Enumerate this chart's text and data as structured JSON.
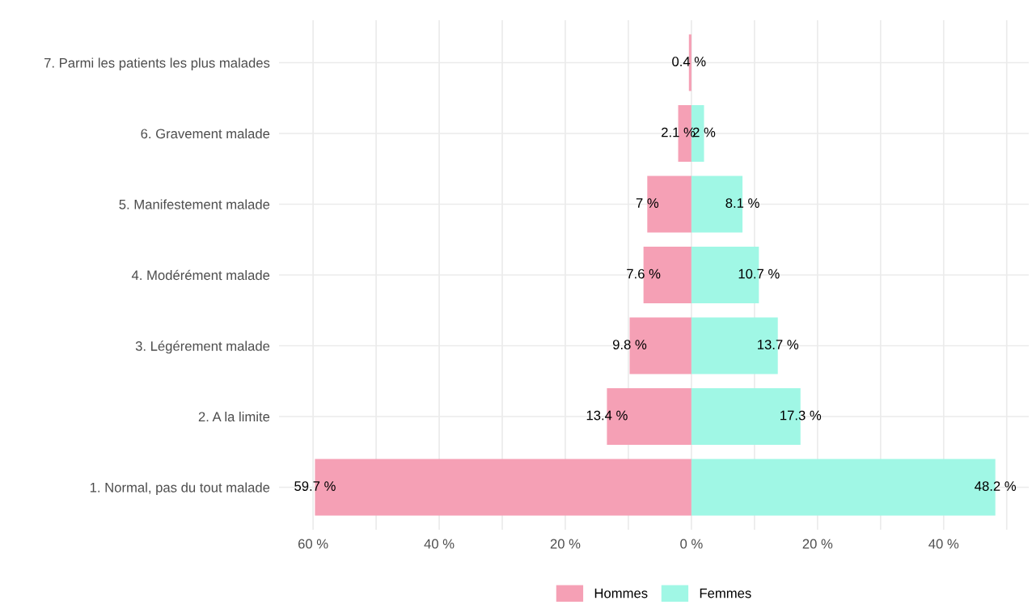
{
  "chart_data": {
    "type": "bar",
    "orientation": "horizontal",
    "categories": [
      "7. Parmi les patients les plus malades",
      "6. Gravement malade",
      "5. Manifestement malade",
      "4. Modérément malade",
      "3. Légérement malade",
      "2. A la limite",
      "1. Normal, pas du tout malade"
    ],
    "series": [
      {
        "name": "Hommes",
        "color": "#f5a0b5",
        "values": [
          0.4,
          2.1,
          7,
          7.6,
          9.8,
          13.4,
          59.7
        ],
        "base": [
          -0.4,
          -2.1,
          -7,
          -7.6,
          -9.8,
          -13.4,
          -59.7
        ],
        "value_labels": [
          "0.4 %",
          "2.1 %",
          "7 %",
          "7.6 %",
          "9.8 %",
          "13.4 %",
          "59.7 %"
        ]
      },
      {
        "name": "Femmes",
        "color": "#a0f7e5",
        "values": [
          null,
          2,
          8.1,
          10.7,
          13.7,
          17.3,
          48.2
        ],
        "value_labels": [
          null,
          "2 %",
          "8.1 %",
          "10.7 %",
          "13.7 %",
          "17.3 %",
          "48.2 %"
        ]
      }
    ],
    "xlim": [
      -65.4,
      53.5
    ],
    "xticks": [
      {
        "value": -60,
        "label": "60 %"
      },
      {
        "value": -50,
        "label": null
      },
      {
        "value": -40,
        "label": "40 %"
      },
      {
        "value": -30,
        "label": null
      },
      {
        "value": -20,
        "label": "20 %"
      },
      {
        "value": -10,
        "label": null
      },
      {
        "value": 0,
        "label": "0 %"
      },
      {
        "value": 10,
        "label": null
      },
      {
        "value": 20,
        "label": "20 %"
      },
      {
        "value": 30,
        "label": null
      },
      {
        "value": 40,
        "label": "40 %"
      },
      {
        "value": 50,
        "label": null
      }
    ],
    "grid": true,
    "legend": "bottom"
  }
}
